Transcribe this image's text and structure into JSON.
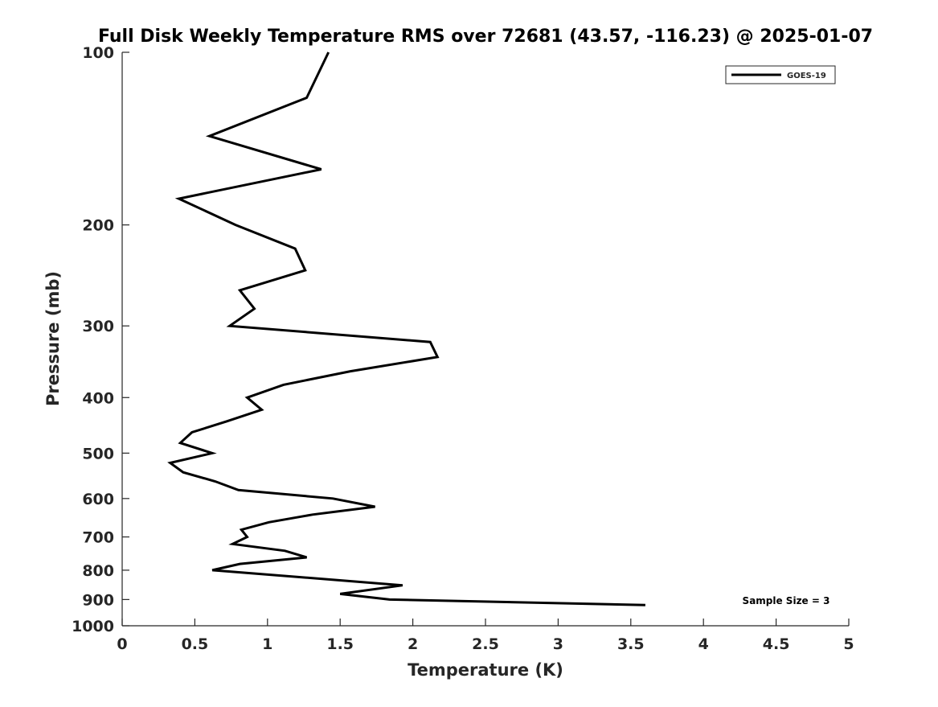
{
  "chart_data": {
    "type": "line",
    "title": "Full Disk Weekly Temperature RMS over 72681 (43.57, -116.23) @ 2025-01-07",
    "xlabel": "Temperature (K)",
    "ylabel": "Pressure (mb)",
    "xlim": [
      0,
      5
    ],
    "ylim": [
      100,
      1000
    ],
    "yscale": "log",
    "yreversed": true,
    "grid": false,
    "xticks": [
      "0",
      "0.5",
      "1",
      "1.5",
      "2",
      "2.5",
      "3",
      "3.5",
      "4",
      "4.5",
      "5"
    ],
    "xtick_values": [
      0,
      0.5,
      1,
      1.5,
      2,
      2.5,
      3,
      3.5,
      4,
      4.5,
      5
    ],
    "yticks": [
      "100",
      "200",
      "300",
      "400",
      "500",
      "600",
      "700",
      "800",
      "900",
      "1000"
    ],
    "ytick_values": [
      100,
      200,
      300,
      400,
      500,
      600,
      700,
      800,
      900,
      1000
    ],
    "legend": {
      "placement": "top-right",
      "entries": [
        "GOES-19"
      ]
    },
    "annotation": "Sample Size = 3",
    "series": [
      {
        "name": "GOES-19",
        "color": "#000000",
        "temperature": [
          1.42,
          1.27,
          0.6,
          1.37,
          0.39,
          0.78,
          1.19,
          1.26,
          0.81,
          0.91,
          0.74,
          2.12,
          2.17,
          1.57,
          1.11,
          0.86,
          0.96,
          0.72,
          0.48,
          0.4,
          0.62,
          0.33,
          0.42,
          0.64,
          0.8,
          1.45,
          1.74,
          1.31,
          1.01,
          0.82,
          0.86,
          0.76,
          1.12,
          1.27,
          0.81,
          0.62,
          1.93,
          1.5,
          1.84,
          3.6
        ],
        "pressure": [
          100,
          120,
          140,
          160,
          180,
          200,
          220,
          240,
          260,
          280,
          300,
          320,
          340,
          360,
          380,
          400,
          420,
          440,
          460,
          480,
          500,
          520,
          540,
          560,
          580,
          600,
          620,
          640,
          660,
          680,
          700,
          720,
          740,
          760,
          780,
          800,
          850,
          880,
          900,
          920
        ]
      }
    ]
  }
}
